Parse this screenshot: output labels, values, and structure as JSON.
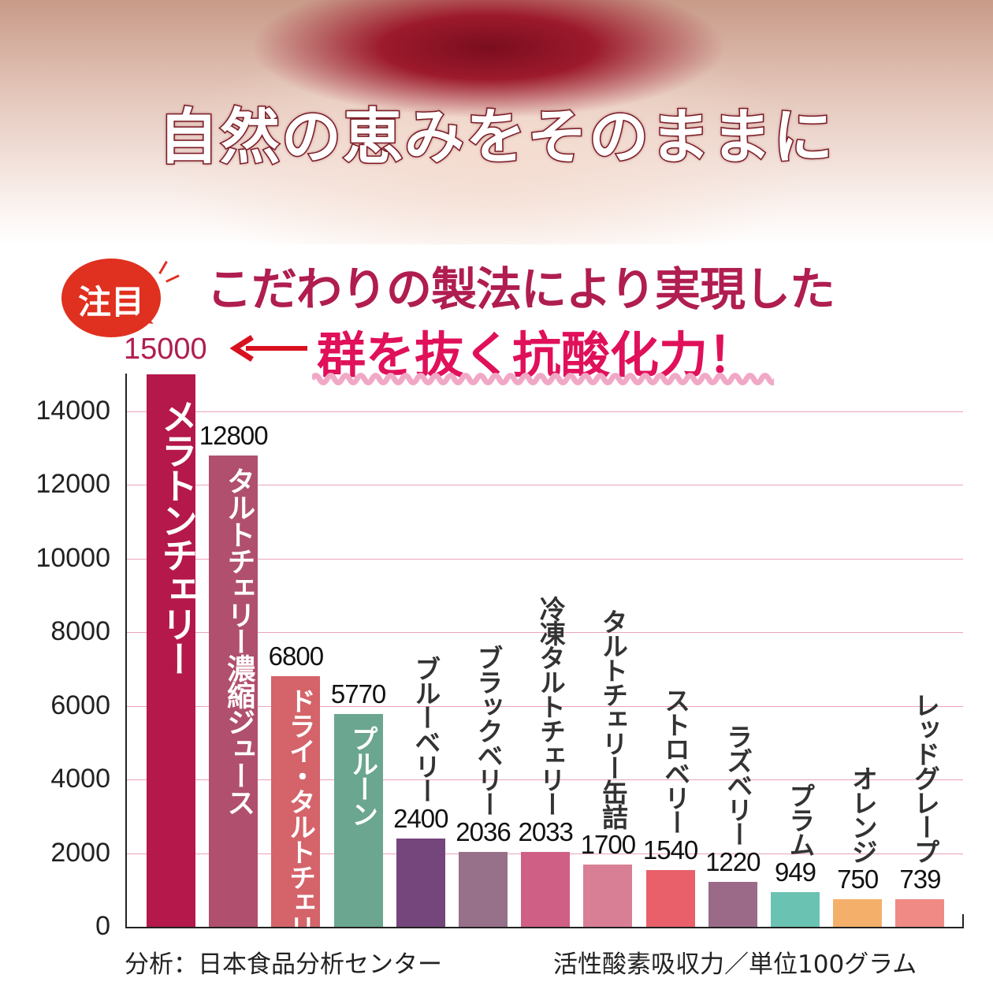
{
  "hero": {
    "title": "自然の恵みをそのままに"
  },
  "badge": {
    "text": "注目"
  },
  "headline": {
    "line1": "こだわりの製法により実現した",
    "line2": "群を抜く抗酸化力！"
  },
  "chart_data": {
    "type": "bar",
    "categories": [
      "メラトンチェリー",
      "タルトチェリー濃縮ジュース",
      "ドライ・タルトチェリー",
      "プルーン",
      "ブルーベリー",
      "ブラックベリー",
      "冷凍タルトチェリー",
      "タルトチェリー缶詰",
      "ストロベリー",
      "ラズベリー",
      "プラム",
      "オレンジ",
      "レッドグレープ"
    ],
    "values": [
      15000,
      12800,
      6800,
      5770,
      2400,
      2036,
      2033,
      1700,
      1540,
      1220,
      949,
      750,
      739
    ],
    "value_labels": [
      "15000",
      "12800",
      "6800",
      "5770",
      "2400",
      "2036",
      "2033",
      "1700",
      "1540",
      "1220",
      "949",
      "750",
      "739"
    ],
    "colors": [
      "#b5184a",
      "#b0506e",
      "#d4646a",
      "#6aa690",
      "#74467c",
      "#967189",
      "#d05f86",
      "#d87f95",
      "#e9606a",
      "#9b6a89",
      "#6ac3b2",
      "#f4b06a",
      "#ef8a85"
    ],
    "ylim": [
      0,
      15000
    ],
    "yticks": [
      "0",
      "2000",
      "4000",
      "6000",
      "8000",
      "10000",
      "12000",
      "14000"
    ],
    "grid": true,
    "highlight_color": "#b01d50",
    "source": "分析：日本食品分析センター",
    "unit": "活性酸素吸収力／単位100グラム"
  }
}
